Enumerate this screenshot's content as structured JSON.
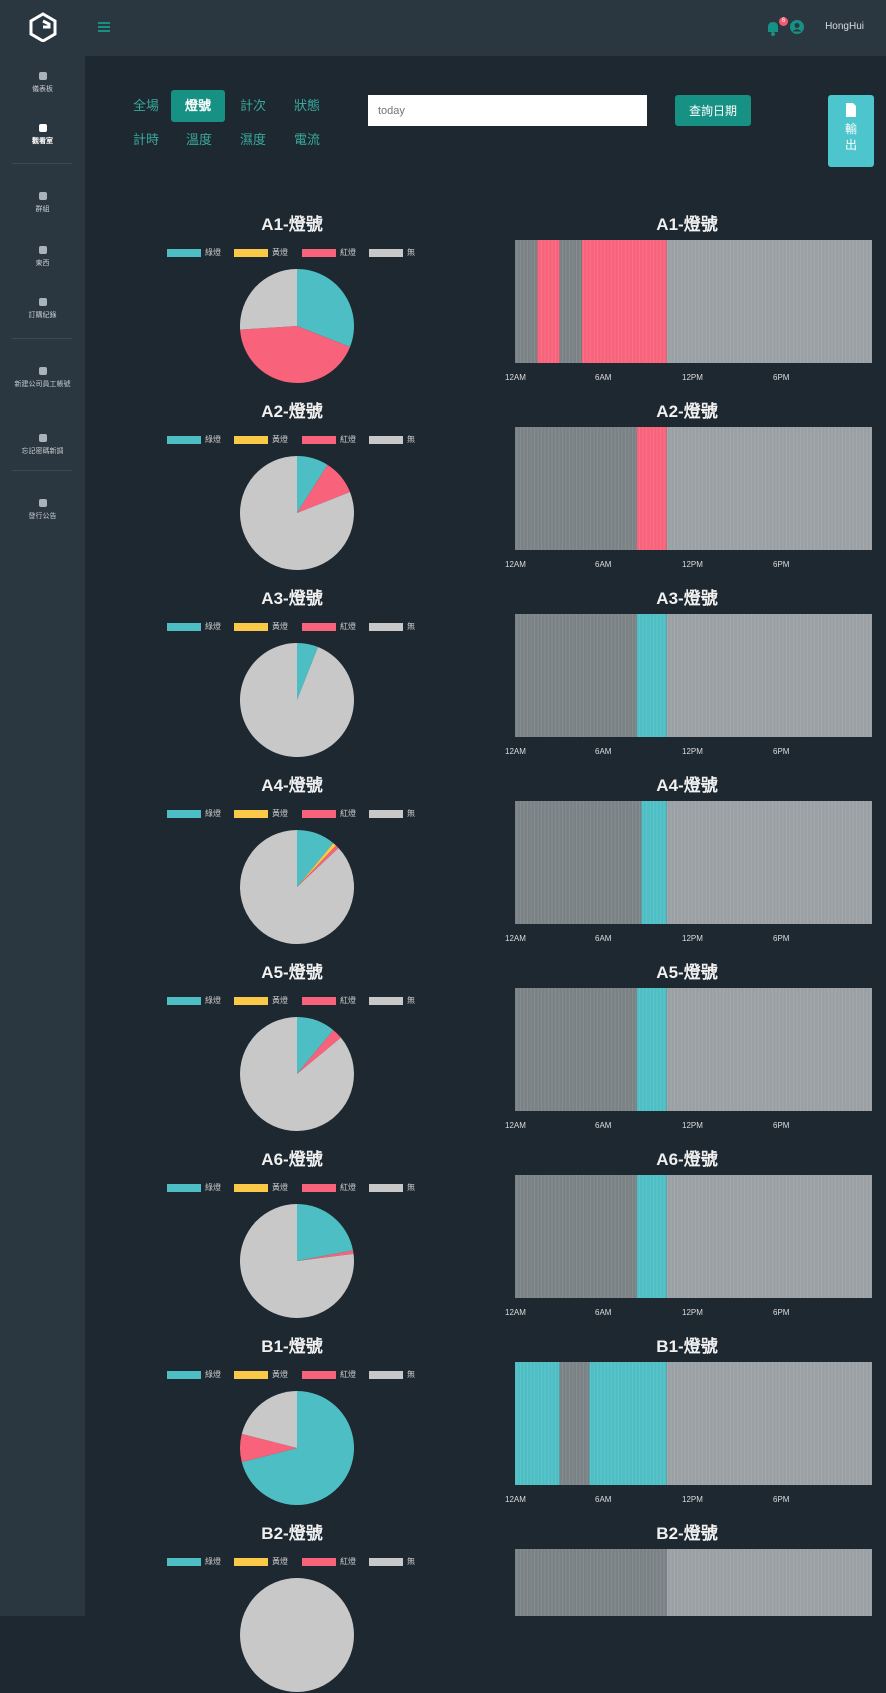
{
  "app": {
    "user": "HongHui",
    "notification_count": "6"
  },
  "sidebar": {
    "items": [
      {
        "label": "儀表板",
        "icon": "dashboard-icon"
      },
      {
        "label": "觀看室",
        "icon": "monitor-icon",
        "active": true
      },
      {
        "label": "群組",
        "icon": "group-icon"
      },
      {
        "label": "東西",
        "icon": "tools-icon"
      },
      {
        "label": "訂購紀錄",
        "icon": "cart-icon"
      },
      {
        "label": "新建公司員工帳號",
        "icon": "add-user-icon"
      },
      {
        "label": "忘記密碼新調",
        "icon": "key-icon"
      },
      {
        "label": "發行公告",
        "icon": "announcement-icon"
      }
    ]
  },
  "toolbar": {
    "tabs": [
      {
        "label": "全場",
        "active": false
      },
      {
        "label": "燈號",
        "active": true
      },
      {
        "label": "計次",
        "active": false
      },
      {
        "label": "狀態",
        "active": false
      },
      {
        "label": "計時",
        "active": false
      },
      {
        "label": "溫度",
        "active": false
      },
      {
        "label": "濕度",
        "active": false
      },
      {
        "label": "電流",
        "active": false
      }
    ],
    "date_placeholder": "today",
    "query_label": "查詢日期",
    "export_label": "輸出"
  },
  "legend": [
    {
      "label": "綠燈",
      "color": "#4dbfc4"
    },
    {
      "label": "黃燈",
      "color": "#f9c947"
    },
    {
      "label": "紅燈",
      "color": "#f8637b"
    },
    {
      "label": "無",
      "color": "#c8c8c8"
    }
  ],
  "colors": {
    "green": "#4dbfc4",
    "yellow": "#f9c947",
    "red": "#f8637b",
    "none": "#c8c8c8",
    "accent": "#169184"
  },
  "time_ticks": [
    "12AM",
    "6AM",
    "12PM",
    "6PM"
  ],
  "chart_data": [
    {
      "type": "pie",
      "title": "A1-燈號",
      "categories": [
        "綠燈",
        "黃燈",
        "紅燈",
        "無"
      ],
      "values": [
        31,
        0,
        43,
        26
      ]
    },
    {
      "type": "pie",
      "title": "A2-燈號",
      "categories": [
        "綠燈",
        "黃燈",
        "紅燈",
        "無"
      ],
      "values": [
        9,
        0,
        10,
        81
      ]
    },
    {
      "type": "pie",
      "title": "A3-燈號",
      "categories": [
        "綠燈",
        "黃燈",
        "紅燈",
        "無"
      ],
      "values": [
        6,
        0,
        0,
        94
      ]
    },
    {
      "type": "pie",
      "title": "A4-燈號",
      "categories": [
        "綠燈",
        "黃燈",
        "紅燈",
        "無"
      ],
      "values": [
        11,
        1,
        1,
        87
      ]
    },
    {
      "type": "pie",
      "title": "A5-燈號",
      "categories": [
        "綠燈",
        "黃燈",
        "紅燈",
        "無"
      ],
      "values": [
        11,
        0,
        3,
        86
      ]
    },
    {
      "type": "pie",
      "title": "A6-燈號",
      "categories": [
        "綠燈",
        "黃燈",
        "紅燈",
        "無"
      ],
      "values": [
        22,
        0,
        1,
        77
      ]
    },
    {
      "type": "pie",
      "title": "B1-燈號",
      "categories": [
        "綠燈",
        "黃燈",
        "紅燈",
        "無"
      ],
      "values": [
        71,
        0,
        8,
        21
      ]
    },
    {
      "type": "pie",
      "title": "B2-燈號",
      "categories": [
        "綠燈",
        "黃燈",
        "紅燈",
        "無"
      ],
      "values": [
        0,
        0,
        0,
        100
      ]
    }
  ],
  "timelines": [
    {
      "title": "A1-燈號",
      "segments": [
        [
          0,
          1.5,
          "none"
        ],
        [
          1.5,
          3,
          "red"
        ],
        [
          3,
          4.5,
          "none"
        ],
        [
          4.5,
          10.2,
          "red"
        ],
        [
          10.2,
          24,
          "gray"
        ]
      ]
    },
    {
      "title": "A2-燈號",
      "segments": [
        [
          0,
          8.2,
          "none"
        ],
        [
          8.2,
          10.2,
          "red"
        ],
        [
          10.2,
          24,
          "gray"
        ]
      ]
    },
    {
      "title": "A3-燈號",
      "segments": [
        [
          0,
          8.2,
          "none"
        ],
        [
          8.2,
          10.2,
          "green"
        ],
        [
          10.2,
          24,
          "gray"
        ]
      ]
    },
    {
      "title": "A4-燈號",
      "segments": [
        [
          0,
          8.5,
          "none"
        ],
        [
          8.5,
          10.2,
          "green"
        ],
        [
          10.2,
          24,
          "gray"
        ]
      ]
    },
    {
      "title": "A5-燈號",
      "segments": [
        [
          0,
          8.2,
          "none"
        ],
        [
          8.2,
          10.2,
          "green"
        ],
        [
          10.2,
          24,
          "gray"
        ]
      ]
    },
    {
      "title": "A6-燈號",
      "segments": [
        [
          0,
          8.2,
          "none"
        ],
        [
          8.2,
          10.2,
          "green"
        ],
        [
          10.2,
          24,
          "gray"
        ]
      ]
    },
    {
      "title": "B1-燈號",
      "segments": [
        [
          0,
          3,
          "green"
        ],
        [
          3,
          5,
          "none"
        ],
        [
          5,
          10.2,
          "green"
        ],
        [
          10.2,
          24,
          "gray"
        ]
      ]
    },
    {
      "title": "B2-燈號",
      "segments": [
        [
          0,
          10.2,
          "none"
        ],
        [
          10.2,
          24,
          "gray"
        ]
      ]
    }
  ]
}
